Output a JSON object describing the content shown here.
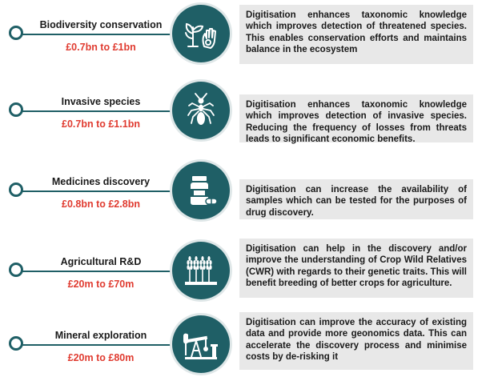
{
  "items": [
    {
      "title": "Biodiversity conservation",
      "value": "£0.7bn to £1bn",
      "icon": "plant-and-hand-icon",
      "description": "Digitisation enhances taxonomic knowledge which improves detection of threatened species. This enables conservation efforts and maintains balance in the ecosystem"
    },
    {
      "title": "Invasive species",
      "value": "£0.7bn to £1.1bn",
      "icon": "ant-icon",
      "description": "Digitisation enhances taxonomic knowledge which improves detection of invasive species. Reducing the frequency of losses from threats leads to significant economic benefits."
    },
    {
      "title": "Medicines discovery",
      "value": "£0.8bn to £2.8bn",
      "icon": "medicine-bottle-icon",
      "description": "Digitisation can increase the availability of samples which can be tested for the purposes of drug discovery."
    },
    {
      "title": "Agricultural R&D",
      "value": "£20m to £70m",
      "icon": "wheat-icon",
      "description": "Digitisation can help in the discovery and/or improve the understanding of Crop Wild Relatives (CWR) with regards to their genetic traits. This will benefit breeding of better crops for agriculture."
    },
    {
      "title": "Mineral exploration",
      "value": "£20m to £80m",
      "icon": "oil-pump-icon",
      "description": "Digitisation can improve the accuracy of existing data and provide more geonomics data. This can accelerate the discovery process and minimise costs by de-risking it"
    }
  ],
  "colors": {
    "teal": "#1f5f66",
    "value_red": "#e03c31",
    "box_grey": "#e8e8e8"
  }
}
